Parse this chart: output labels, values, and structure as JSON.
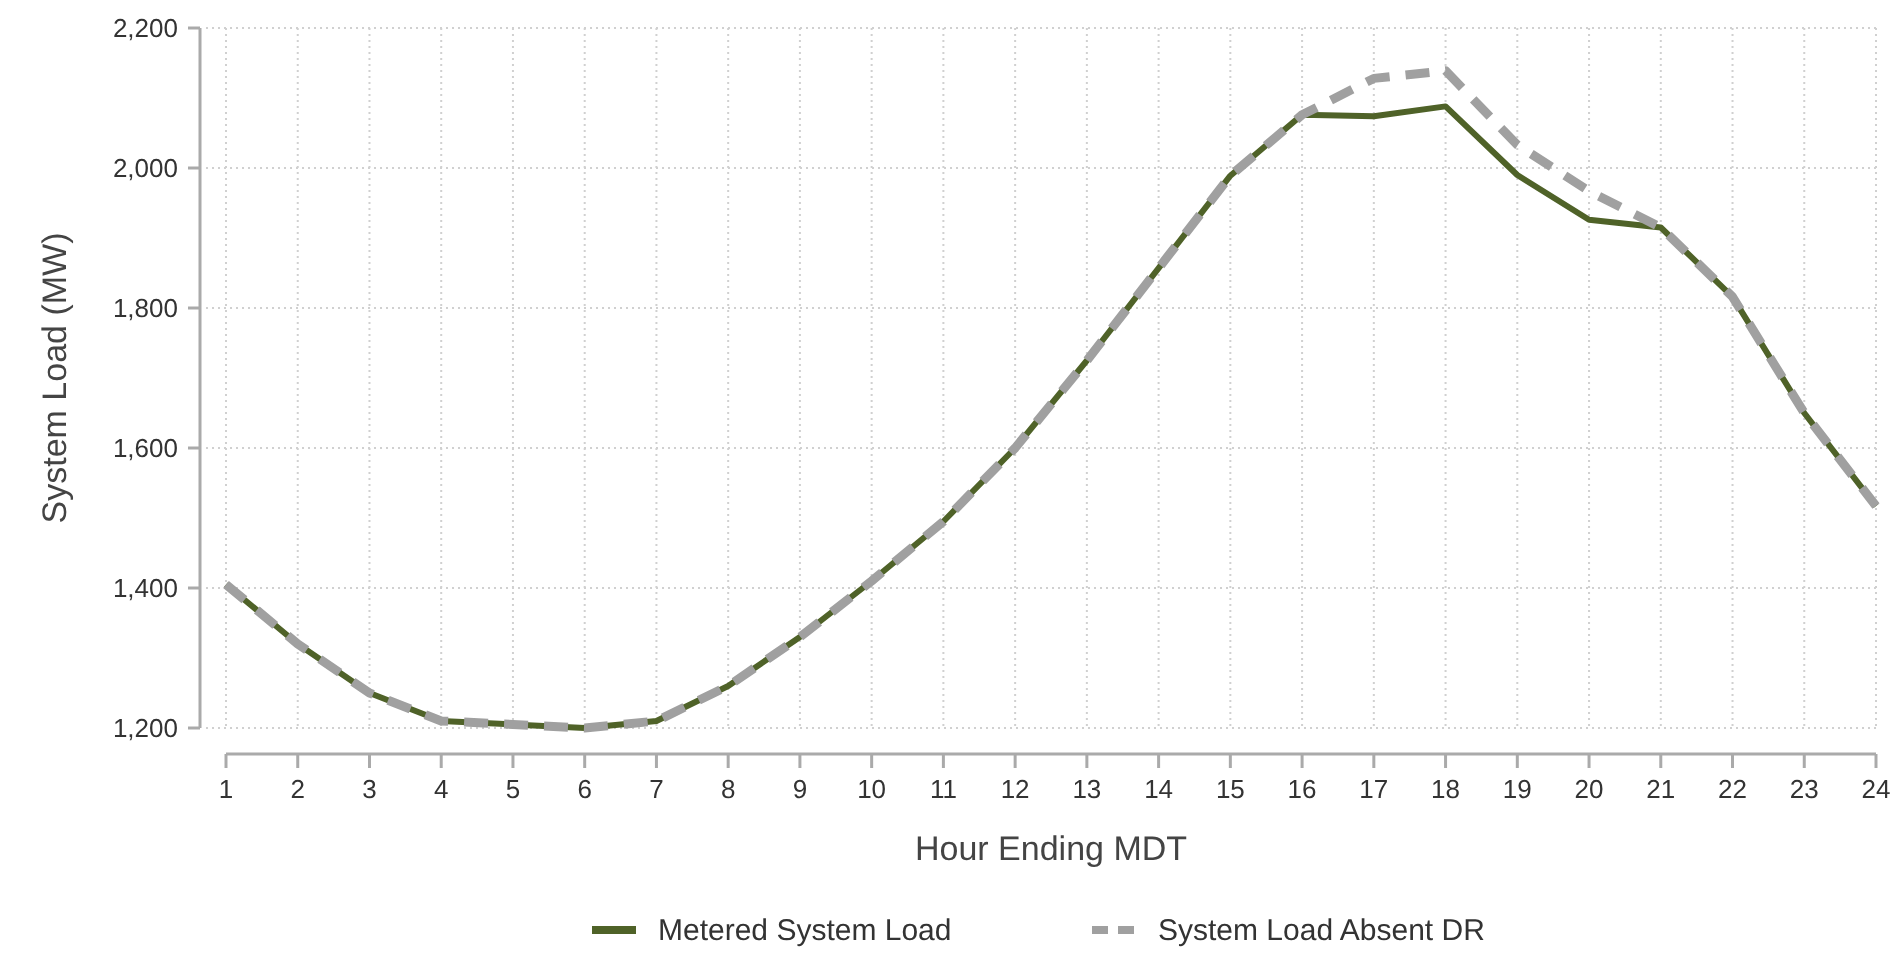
{
  "chart_data": {
    "type": "line",
    "xlabel": "Hour Ending MDT",
    "ylabel": "System Load (MW)",
    "x": [
      1,
      2,
      3,
      4,
      5,
      6,
      7,
      8,
      9,
      10,
      11,
      12,
      13,
      14,
      15,
      16,
      17,
      18,
      19,
      20,
      21,
      22,
      23,
      24
    ],
    "xlim": [
      1,
      24
    ],
    "xticks": [
      1,
      2,
      3,
      4,
      5,
      6,
      7,
      8,
      9,
      10,
      11,
      12,
      13,
      14,
      15,
      16,
      17,
      18,
      19,
      20,
      21,
      22,
      23,
      24
    ],
    "ylim": [
      1200,
      2200
    ],
    "yticks": [
      {
        "value": 1200,
        "label": "1,200"
      },
      {
        "value": 1400,
        "label": "1,400"
      },
      {
        "value": 1600,
        "label": "1,600"
      },
      {
        "value": 1800,
        "label": "1,800"
      },
      {
        "value": 2000,
        "label": "2,000"
      },
      {
        "value": 2200,
        "label": "2,200"
      }
    ],
    "grid": true,
    "legend": "bottom",
    "series": [
      {
        "name": "Metered System Load",
        "color": "#4f6228",
        "line_style": "solid",
        "values": [
          1405,
          1320,
          1250,
          1210,
          1205,
          1200,
          1210,
          1260,
          1330,
          1410,
          1495,
          1600,
          1725,
          1857,
          1989,
          2076,
          2074,
          2088,
          1990,
          1926,
          1915,
          1816,
          1650,
          1517
        ]
      },
      {
        "name": "System Load Absent DR",
        "color": "#a0a0a0",
        "line_style": "dashed",
        "values": [
          1405,
          1320,
          1250,
          1210,
          1205,
          1200,
          1210,
          1260,
          1330,
          1410,
          1495,
          1600,
          1725,
          1857,
          1989,
          2076,
          2128,
          2139,
          2033,
          1967,
          1915,
          1816,
          1650,
          1517
        ]
      }
    ]
  }
}
